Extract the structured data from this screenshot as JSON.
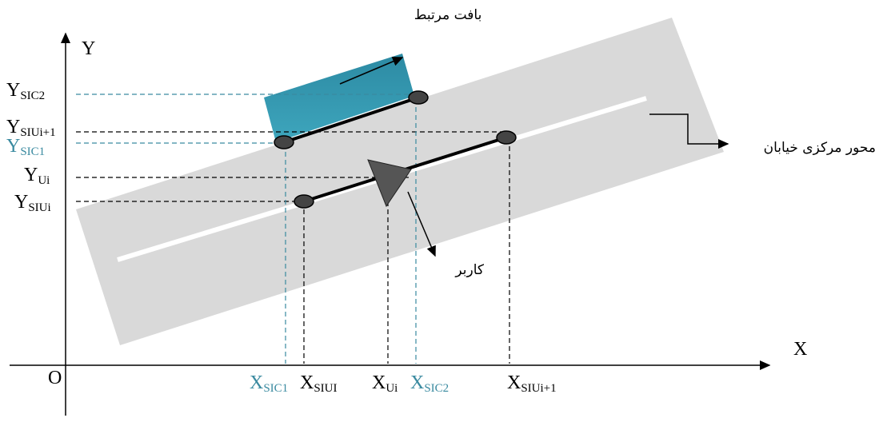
{
  "annotations": {
    "context": "بافت مرتبط",
    "axis_center": "محور مرکزی خیابان",
    "user": "کاربر"
  },
  "axes": {
    "x": "X",
    "y": "Y",
    "origin": "O"
  },
  "y_labels": [
    {
      "main": "Y",
      "sub": "SIC2"
    },
    {
      "main": "Y",
      "sub": "SIUi+1"
    },
    {
      "main": "Y",
      "sub": "SIC1"
    },
    {
      "main": "Y",
      "sub": "Ui"
    },
    {
      "main": "Y",
      "sub": "SIUi"
    }
  ],
  "x_labels": [
    {
      "main": "X",
      "sub": "SIC1"
    },
    {
      "main": "X",
      "sub": "SIUI"
    },
    {
      "main": "X",
      "sub": "Ui"
    },
    {
      "main": "X",
      "sub": "SIC2"
    },
    {
      "main": "X",
      "sub": "SIUi+1"
    }
  ]
}
